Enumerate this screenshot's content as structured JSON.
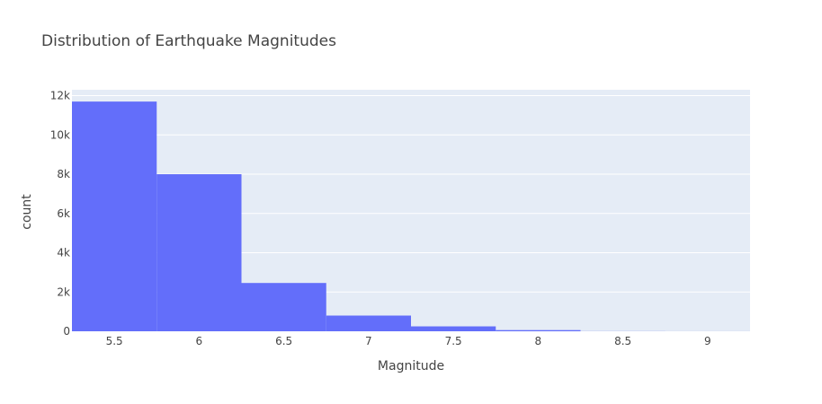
{
  "chart_data": {
    "type": "bar",
    "title": "Distribution of Earthquake Magnitudes",
    "xlabel": "Magnitude",
    "ylabel": "count",
    "bins": [
      {
        "start": 5.25,
        "end": 5.75,
        "count": 11700
      },
      {
        "start": 5.75,
        "end": 6.25,
        "count": 8000
      },
      {
        "start": 6.25,
        "end": 6.75,
        "count": 2460
      },
      {
        "start": 6.75,
        "end": 7.25,
        "count": 800
      },
      {
        "start": 7.25,
        "end": 7.75,
        "count": 250
      },
      {
        "start": 7.75,
        "end": 8.25,
        "count": 60
      },
      {
        "start": 8.25,
        "end": 8.75,
        "count": 5
      },
      {
        "start": 8.75,
        "end": 9.25,
        "count": 2
      }
    ],
    "xlim": [
      5.25,
      9.25
    ],
    "ylim": [
      0,
      12300
    ],
    "x_ticks": [
      {
        "value": 5.5,
        "label": "5.5"
      },
      {
        "value": 6,
        "label": "6"
      },
      {
        "value": 6.5,
        "label": "6.5"
      },
      {
        "value": 7,
        "label": "7"
      },
      {
        "value": 7.5,
        "label": "7.5"
      },
      {
        "value": 8,
        "label": "8"
      },
      {
        "value": 8.5,
        "label": "8.5"
      },
      {
        "value": 9,
        "label": "9"
      }
    ],
    "y_ticks": [
      {
        "value": 0,
        "label": "0"
      },
      {
        "value": 2000,
        "label": "2k"
      },
      {
        "value": 4000,
        "label": "4k"
      },
      {
        "value": 6000,
        "label": "6k"
      },
      {
        "value": 8000,
        "label": "8k"
      },
      {
        "value": 10000,
        "label": "10k"
      },
      {
        "value": 12000,
        "label": "12k"
      }
    ],
    "grid": true,
    "colors": {
      "bar": "#636efa",
      "plot_background": "#e5ecf6",
      "grid": "#ffffff"
    }
  }
}
